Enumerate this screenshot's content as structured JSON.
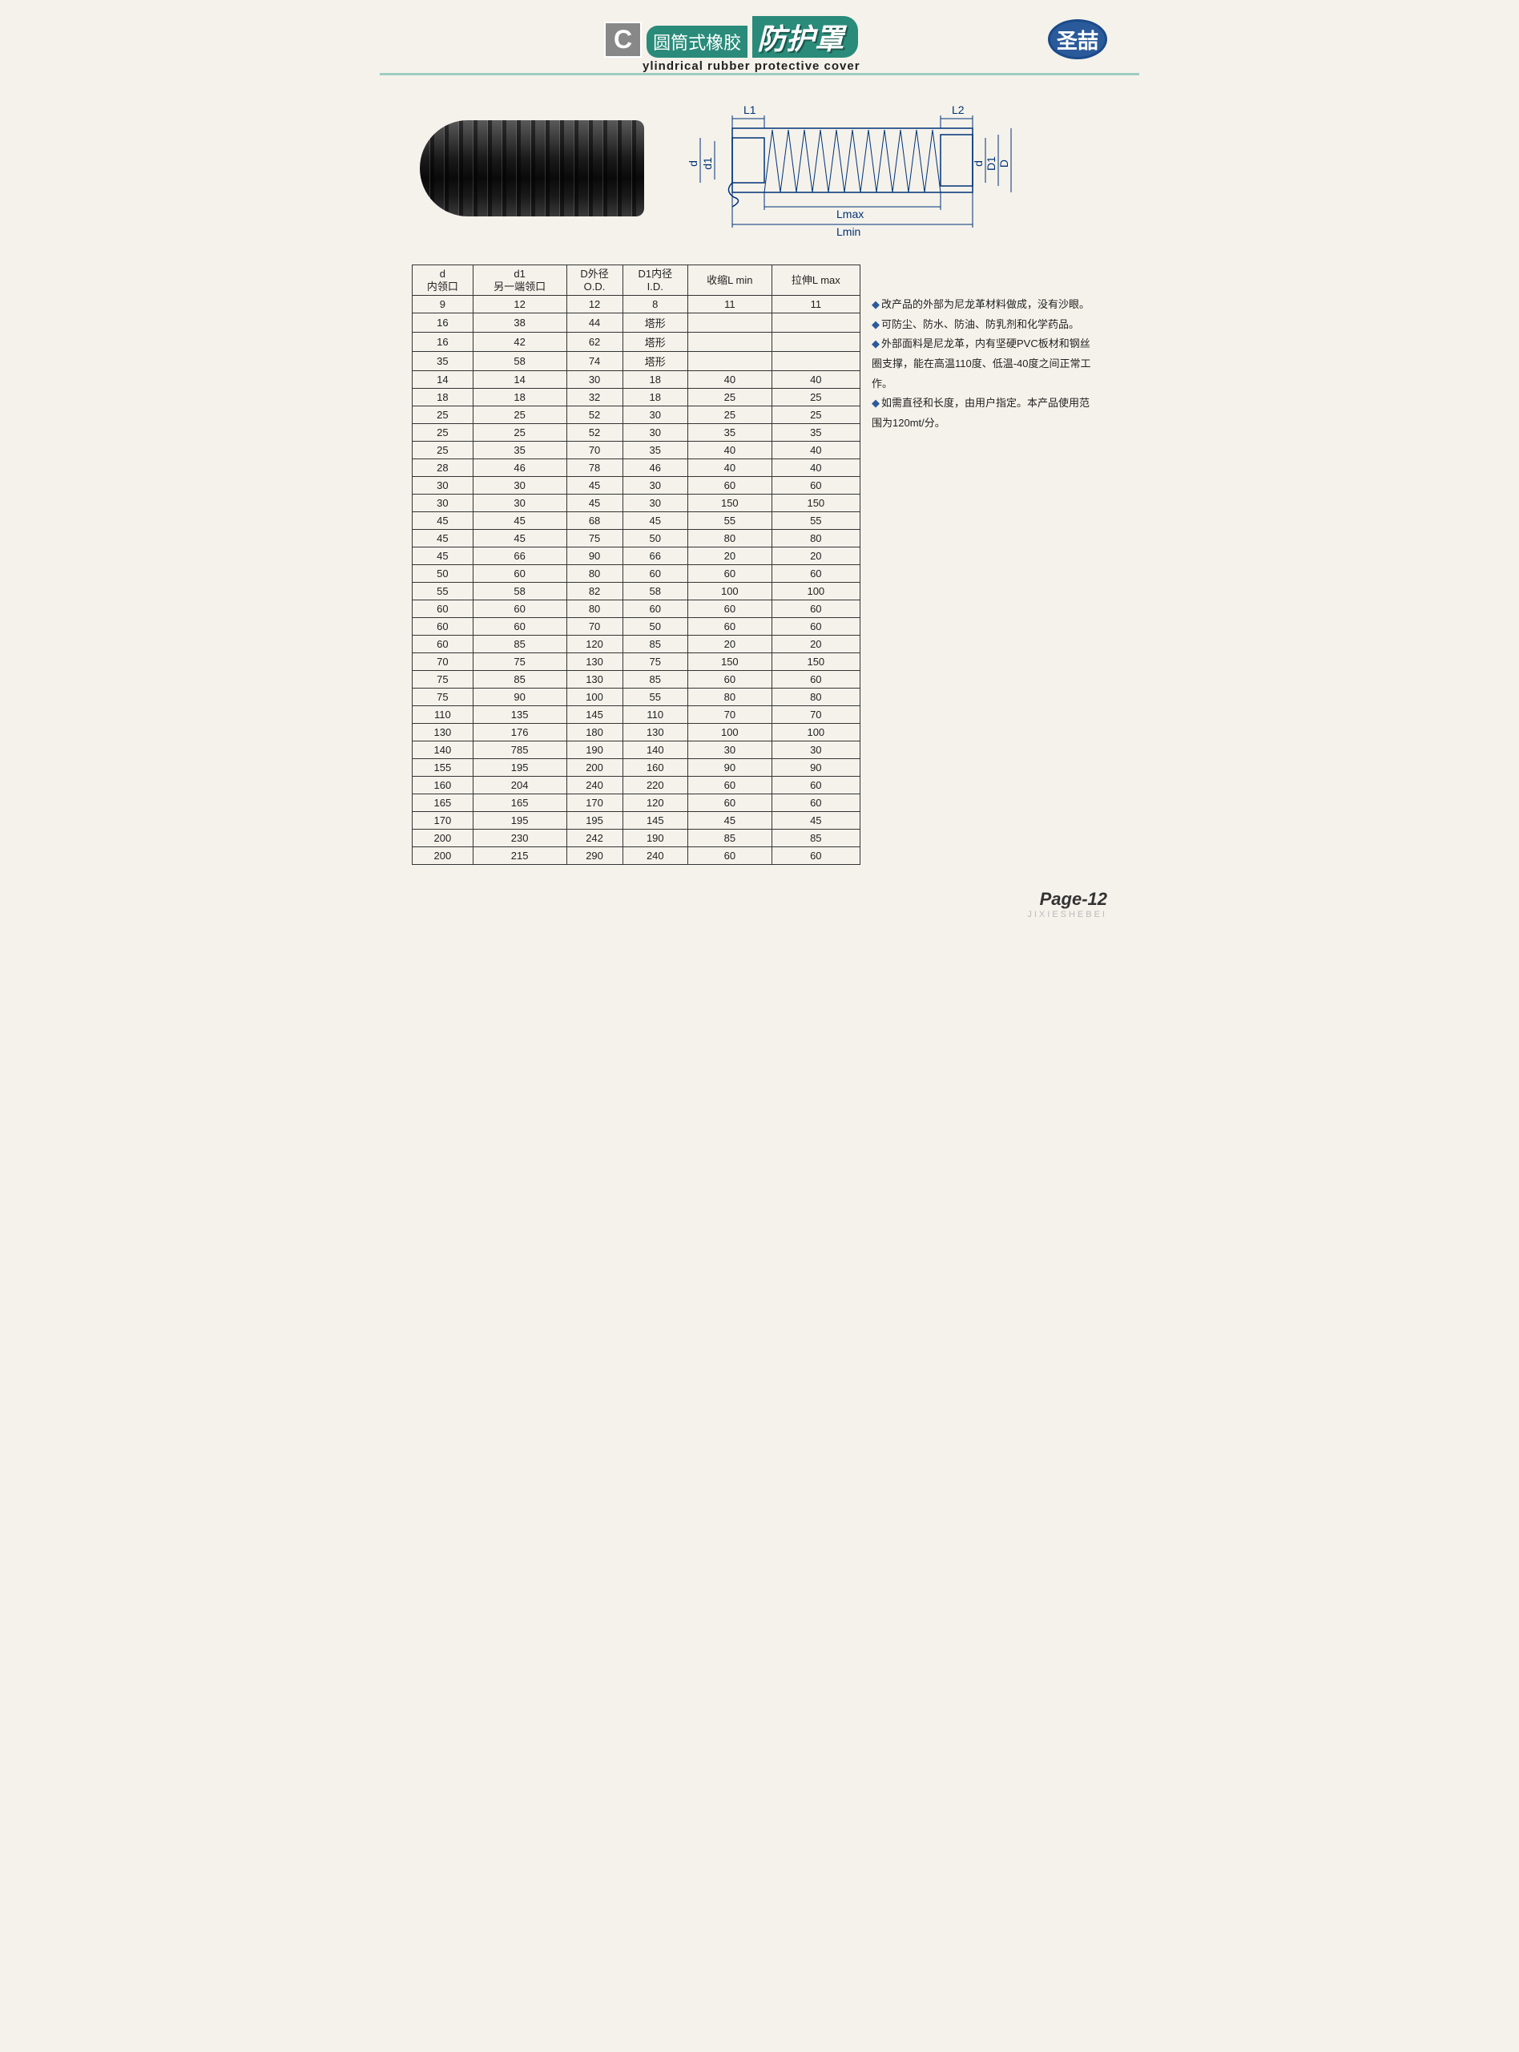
{
  "header": {
    "badge": "C",
    "title_cn_left": "圆筒式橡胶",
    "title_cn_right": "防护罩",
    "subtitle": "ylindrical rubber protective cover",
    "logo_text": "圣喆"
  },
  "diagram": {
    "labels": {
      "L1": "L1",
      "L2": "L2",
      "d_left": "d",
      "d1": "d1",
      "d_right": "d",
      "D1": "D1",
      "D": "D",
      "Lmax": "Lmax",
      "Lmin": "Lmin"
    },
    "stroke": "#003377",
    "fontsize": 14
  },
  "table": {
    "columns": [
      {
        "line1": "d",
        "line2": "内领口"
      },
      {
        "line1": "d1",
        "line2": "另一端领口"
      },
      {
        "line1": "D外径",
        "line2": "O.D."
      },
      {
        "line1": "D1内径",
        "line2": "I.D."
      },
      {
        "line1": "收缩L min",
        "line2": ""
      },
      {
        "line1": "拉伸L  max",
        "line2": ""
      }
    ],
    "rows": [
      [
        "9",
        "12",
        "12",
        "8",
        "11",
        "11"
      ],
      [
        "16",
        "38",
        "44",
        "塔形",
        "",
        ""
      ],
      [
        "16",
        "42",
        "62",
        "塔形",
        "",
        ""
      ],
      [
        "35",
        "58",
        "74",
        "塔形",
        "",
        ""
      ],
      [
        "14",
        "14",
        "30",
        "18",
        "40",
        "40"
      ],
      [
        "18",
        "18",
        "32",
        "18",
        "25",
        "25"
      ],
      [
        "25",
        "25",
        "52",
        "30",
        "25",
        "25"
      ],
      [
        "25",
        "25",
        "52",
        "30",
        "35",
        "35"
      ],
      [
        "25",
        "35",
        "70",
        "35",
        "40",
        "40"
      ],
      [
        "28",
        "46",
        "78",
        "46",
        "40",
        "40"
      ],
      [
        "30",
        "30",
        "45",
        "30",
        "60",
        "60"
      ],
      [
        "30",
        "30",
        "45",
        "30",
        "150",
        "150"
      ],
      [
        "45",
        "45",
        "68",
        "45",
        "55",
        "55"
      ],
      [
        "45",
        "45",
        "75",
        "50",
        "80",
        "80"
      ],
      [
        "45",
        "66",
        "90",
        "66",
        "20",
        "20"
      ],
      [
        "50",
        "60",
        "80",
        "60",
        "60",
        "60"
      ],
      [
        "55",
        "58",
        "82",
        "58",
        "100",
        "100"
      ],
      [
        "60",
        "60",
        "80",
        "60",
        "60",
        "60"
      ],
      [
        "60",
        "60",
        "70",
        "50",
        "60",
        "60"
      ],
      [
        "60",
        "85",
        "120",
        "85",
        "20",
        "20"
      ],
      [
        "70",
        "75",
        "130",
        "75",
        "150",
        "150"
      ],
      [
        "75",
        "85",
        "130",
        "85",
        "60",
        "60"
      ],
      [
        "75",
        "90",
        "100",
        "55",
        "80",
        "80"
      ],
      [
        "110",
        "135",
        "145",
        "110",
        "70",
        "70"
      ],
      [
        "130",
        "176",
        "180",
        "130",
        "100",
        "100"
      ],
      [
        "140",
        "785",
        "190",
        "140",
        "30",
        "30"
      ],
      [
        "155",
        "195",
        "200",
        "160",
        "90",
        "90"
      ],
      [
        "160",
        "204",
        "240",
        "220",
        "60",
        "60"
      ],
      [
        "165",
        "165",
        "170",
        "120",
        "60",
        "60"
      ],
      [
        "170",
        "195",
        "195",
        "145",
        "45",
        "45"
      ],
      [
        "200",
        "230",
        "242",
        "190",
        "85",
        "85"
      ],
      [
        "200",
        "215",
        "290",
        "240",
        "60",
        "60"
      ]
    ]
  },
  "notes": [
    "改产品的外部为尼龙革材料做成，没有沙眼。",
    "可防尘、防水、防油、防乳剂和化学药品。",
    "外部面料是尼龙革，内有坚硬PVC板材和钢丝圈支撑，能在高温110度、低温-40度之间正常工作。",
    "如需直径和长度，由用户指定。本产品使用范围为120mt/分。"
  ],
  "footer": {
    "page": "Page-12",
    "sub": "JIXIESHEBEI"
  }
}
